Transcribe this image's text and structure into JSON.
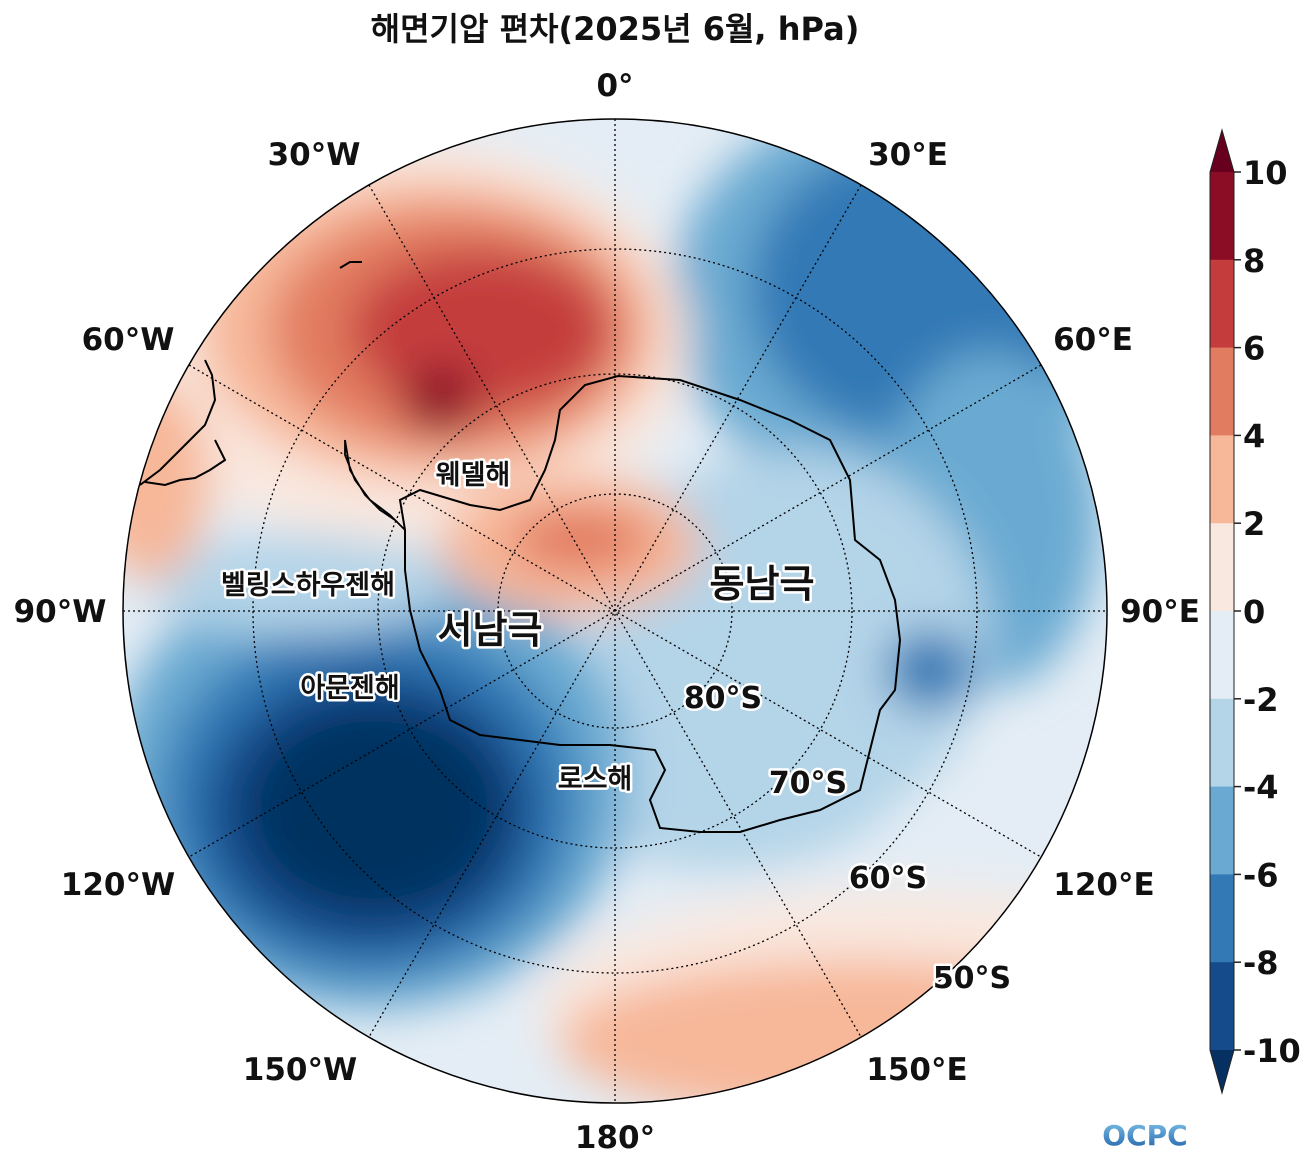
{
  "title": "해면기압 편차(2025년 6월, hPa)",
  "map": {
    "projection": "south-polar-stereographic",
    "lon_labels": [
      "0°",
      "30°E",
      "60°E",
      "90°E",
      "120°E",
      "150°E",
      "180°",
      "150°W",
      "120°W",
      "90°W",
      "60°W",
      "30°W"
    ],
    "lat_labels": [
      "80°S",
      "70°S",
      "60°S",
      "50°S"
    ],
    "regions": [
      "웨델해",
      "벨링스하우젠해",
      "서남극",
      "동남극",
      "아문젠해",
      "로스해"
    ]
  },
  "colorbar": {
    "ticks": [
      "10",
      "8",
      "6",
      "4",
      "2",
      "0",
      "-2",
      "-4",
      "-6",
      "-8",
      "-10"
    ],
    "colors": [
      "#67001f",
      "#8b0c25",
      "#c43c3c",
      "#e27c61",
      "#f7b799",
      "#f9e8df",
      "#e4edf5",
      "#b4d4e8",
      "#6aaad2",
      "#3279b6",
      "#164b8b",
      "#053061"
    ],
    "extend": "both"
  },
  "logo": "OCPC"
}
